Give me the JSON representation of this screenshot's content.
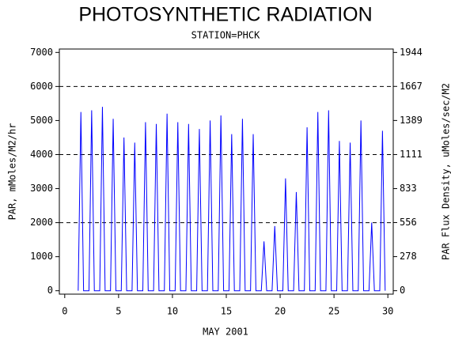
{
  "chart_data": {
    "type": "line",
    "title": "PHOTOSYNTHETIC RADIATION",
    "subtitle": "STATION=PHCK",
    "xlabel": "MAY 2001",
    "ylabel": "PAR, mMoles/M2/hr",
    "y2label": "PAR Flux Density, uMoles/sec/M2",
    "color": "#0000ff",
    "x": [
      1.25,
      1.5,
      1.75,
      2.25,
      2.5,
      2.75,
      3.25,
      3.5,
      3.75,
      4.25,
      4.5,
      4.75,
      5.25,
      5.5,
      5.75,
      6.25,
      6.5,
      6.75,
      7.25,
      7.5,
      7.75,
      8.25,
      8.5,
      8.75,
      9.25,
      9.5,
      9.75,
      10.25,
      10.5,
      10.75,
      11.25,
      11.5,
      11.75,
      12.25,
      12.5,
      12.75,
      13.25,
      13.5,
      13.75,
      14.25,
      14.5,
      14.75,
      15.25,
      15.5,
      15.75,
      16.25,
      16.5,
      16.75,
      17.25,
      17.5,
      17.75,
      18.25,
      18.5,
      18.75,
      19.25,
      19.5,
      19.75,
      20.25,
      20.5,
      20.75,
      21.25,
      21.5,
      21.75,
      22.25,
      22.5,
      22.75,
      23.25,
      23.5,
      23.75,
      24.25,
      24.5,
      24.75,
      25.25,
      25.5,
      25.75,
      26.25,
      26.5,
      26.75,
      27.25,
      27.5,
      27.75,
      28.25,
      28.5,
      28.75,
      29.25,
      29.5,
      29.75
    ],
    "values": [
      0,
      5250,
      0,
      0,
      5300,
      0,
      0,
      5400,
      0,
      0,
      5050,
      0,
      0,
      4500,
      0,
      0,
      4350,
      0,
      0,
      4950,
      0,
      0,
      4900,
      0,
      0,
      5200,
      0,
      0,
      4950,
      0,
      0,
      4900,
      0,
      0,
      4750,
      0,
      0,
      5000,
      0,
      0,
      5150,
      0,
      0,
      4600,
      0,
      0,
      5050,
      0,
      0,
      4600,
      0,
      0,
      1450,
      0,
      0,
      1900,
      0,
      0,
      3300,
      0,
      0,
      2900,
      0,
      0,
      4800,
      0,
      0,
      5250,
      0,
      0,
      5300,
      0,
      0,
      4400,
      0,
      0,
      4350,
      0,
      0,
      5000,
      0,
      0,
      2000,
      0,
      0,
      4700,
      0
    ],
    "xlim": [
      -0.5,
      30.5
    ],
    "xticks": [
      0,
      5,
      10,
      15,
      20,
      25,
      30
    ],
    "ylim": [
      -100,
      7100
    ],
    "yticks": [
      0,
      1000,
      2000,
      3000,
      4000,
      5000,
      6000,
      7000
    ],
    "y2lim": [
      -28,
      1972
    ],
    "y2ticks": [
      0,
      278,
      556,
      833,
      1111,
      1389,
      1667,
      1944
    ]
  }
}
